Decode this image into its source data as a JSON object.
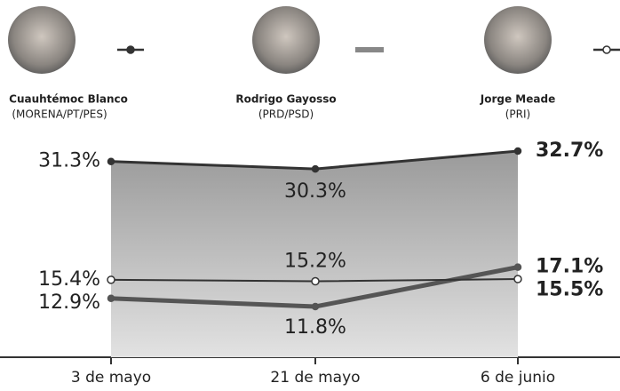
{
  "chart_data": {
    "type": "line",
    "categories": [
      "3 de mayo",
      "21 de mayo",
      "6 de junio"
    ],
    "series": [
      {
        "name": "Cuauhtémoc Blanco",
        "party": "(MORENA/PT/PES)",
        "color": "#333333",
        "values": [
          31.3,
          30.3,
          32.7
        ],
        "value_labels": [
          "31.3%",
          "30.3%",
          "32.7%"
        ]
      },
      {
        "name": "Rodrigo Gayosso",
        "party": "(PRD/PSD)",
        "color": "#555555",
        "values": [
          12.9,
          11.8,
          17.1
        ],
        "value_labels": [
          "12.9%",
          "11.8%",
          "17.1%"
        ]
      },
      {
        "name": "Jorge Meade",
        "party": "(PRI)",
        "color": "#333333",
        "values": [
          15.4,
          15.2,
          15.5
        ],
        "value_labels": [
          "15.4%",
          "15.2%",
          "15.5%"
        ]
      }
    ]
  }
}
